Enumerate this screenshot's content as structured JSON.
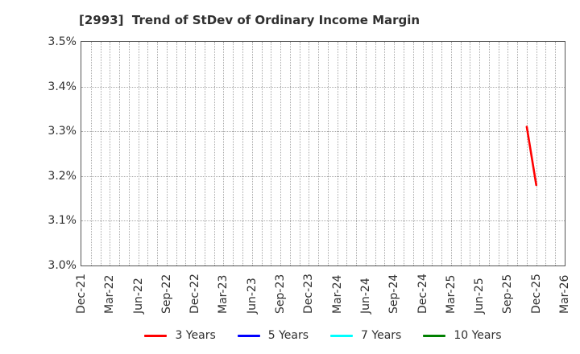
{
  "title": "[2993]  Trend of StDev of Ordinary Income Margin",
  "colors": {
    "background": "#ffffff",
    "title_text": "#303030",
    "tick_text": "#303030",
    "grid": "#aaaaaa",
    "spine": "#555555",
    "series_red": "#ff0000",
    "series_blue": "#0000ff",
    "series_cyan": "#00ffff",
    "series_green": "#008000"
  },
  "chart_data": {
    "type": "line",
    "title": "[2993]  Trend of StDev of Ordinary Income Margin",
    "xlabel": "",
    "ylabel": "",
    "ylim": [
      3.0,
      3.5
    ],
    "yticks": [
      {
        "label": "3.5%",
        "value": 3.5
      },
      {
        "label": "3.4%",
        "value": 3.4
      },
      {
        "label": "3.3%",
        "value": 3.3
      },
      {
        "label": "3.2%",
        "value": 3.2
      },
      {
        "label": "3.1%",
        "value": 3.1
      },
      {
        "label": "3.0%",
        "value": 3.0
      }
    ],
    "x_ticks": [
      "Dec-21",
      "Mar-22",
      "Jun-22",
      "Sep-22",
      "Dec-22",
      "Mar-23",
      "Jun-23",
      "Sep-23",
      "Dec-23",
      "Mar-24",
      "Jun-24",
      "Sep-24",
      "Dec-24",
      "Mar-25",
      "Jun-25",
      "Sep-25",
      "Dec-25",
      "Mar-26"
    ],
    "months_per_tick": 3,
    "grid": {
      "style": "dotted",
      "vertical": "monthly",
      "horizontal": "every 0.1%"
    },
    "legend_position": "bottom-center",
    "series": [
      {
        "name": "3 Years",
        "color": "#ff0000",
        "points": [
          {
            "x": "Nov-25",
            "y": 3.31
          },
          {
            "x": "Dec-25",
            "y": 3.18
          }
        ]
      },
      {
        "name": "5 Years",
        "color": "#0000ff",
        "points": []
      },
      {
        "name": "7 Years",
        "color": "#00ffff",
        "points": []
      },
      {
        "name": "10 Years",
        "color": "#008000",
        "points": []
      }
    ]
  }
}
